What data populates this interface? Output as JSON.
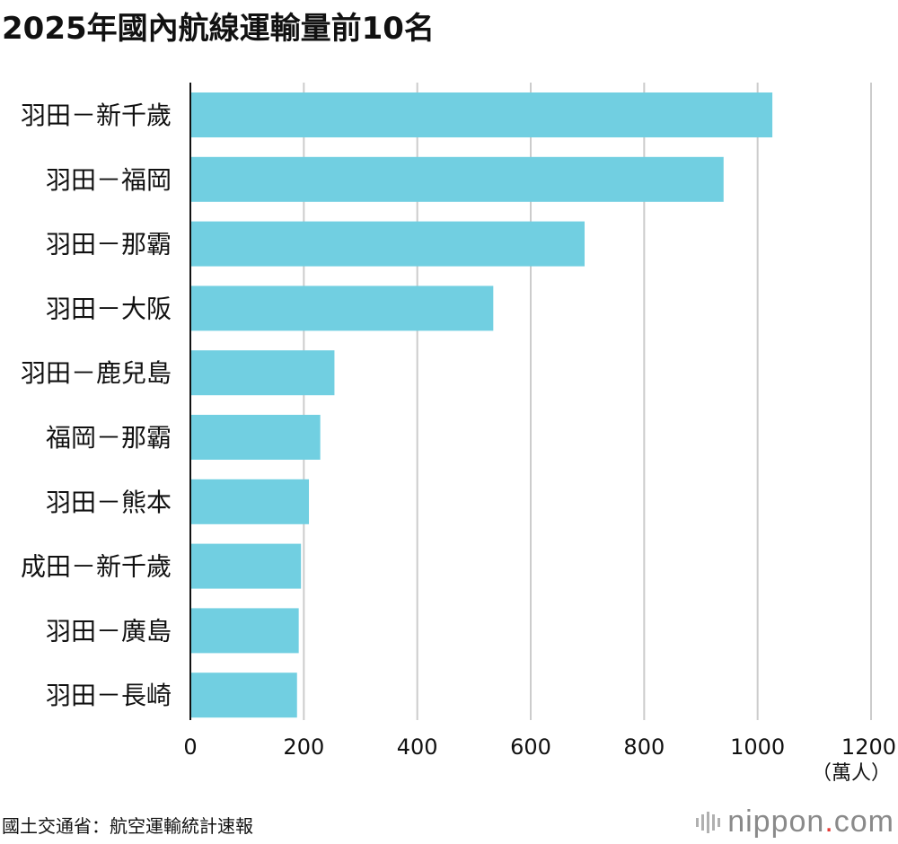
{
  "chart_data": {
    "type": "bar",
    "orientation": "horizontal",
    "title": "2025年國內航線運輸量前10名",
    "categories": [
      "羽田－新千歲",
      "羽田－福岡",
      "羽田－那霸",
      "羽田－大阪",
      "羽田－鹿兒島",
      "福岡－那霸",
      "羽田－熊本",
      "成田－新千歲",
      "羽田－廣島",
      "羽田－長崎"
    ],
    "values": [
      1026,
      940,
      695,
      534,
      254,
      229,
      209,
      195,
      191,
      188
    ],
    "unit": "（萬人）",
    "xlim": [
      0,
      1200
    ],
    "xticks": [
      0,
      200,
      400,
      600,
      800,
      1000,
      1200
    ],
    "grid": true,
    "colors": {
      "bar": "#71cfe1",
      "grid": "#cccccc",
      "axis": "#111111"
    }
  },
  "source": "國土交通省：航空運輸統計速報",
  "logo": {
    "name": "nippon",
    "dot": ".",
    "suffix": "com"
  }
}
